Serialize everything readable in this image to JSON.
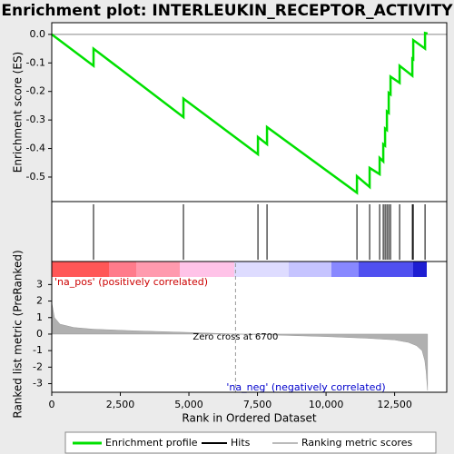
{
  "title": "Enrichment plot: INTERLEUKIN_RECEPTOR_ACTIVITY",
  "legend": [
    "Enrichment profile",
    "Hits",
    "Ranking metric scores"
  ],
  "chart_data": [
    {
      "type": "line",
      "ylabel": "Enrichment score (ES)",
      "color": "#00e000",
      "xlim": [
        0,
        14400
      ],
      "ylim": [
        -0.586,
        0.041
      ],
      "yticks": [
        {
          "value": 0,
          "label": "0.0"
        },
        -0.1,
        -0.2,
        -0.3,
        -0.4,
        -0.5
      ],
      "x": [
        0,
        1523,
        1523,
        4801,
        4801,
        7517,
        7517,
        7848,
        7848,
        11126,
        11126,
        11589,
        11589,
        11954,
        11954,
        12086,
        12086,
        12152,
        12152,
        12219,
        12219,
        12285,
        12285,
        12351,
        12351,
        12682,
        12682,
        13146,
        13146,
        13179,
        13179,
        13609,
        13609,
        13700
      ],
      "values": [
        0,
        -0.11,
        -0.05,
        -0.29,
        -0.225,
        -0.42,
        -0.36,
        -0.385,
        -0.325,
        -0.555,
        -0.497,
        -0.535,
        -0.468,
        -0.49,
        -0.433,
        -0.445,
        -0.385,
        -0.39,
        -0.33,
        -0.335,
        -0.27,
        -0.275,
        -0.205,
        -0.21,
        -0.148,
        -0.17,
        -0.11,
        -0.145,
        -0.085,
        -0.087,
        -0.02,
        -0.05,
        0.005,
        0.003
      ],
      "hits": [
        1523,
        4801,
        7517,
        7848,
        11126,
        11589,
        11954,
        12086,
        12152,
        12219,
        12285,
        12351,
        12682,
        13146,
        13179,
        13609
      ]
    },
    {
      "type": "area",
      "ylabel": "Ranked list metric (PreRanked)",
      "xlabel": "Rank in Ordered Dataset",
      "color": "#b0b0b0",
      "xlim": [
        0,
        14400
      ],
      "ylim": [
        -3.52,
        3.46
      ],
      "xticks": [
        0,
        {
          "value": 2500,
          "label": "2,500"
        },
        {
          "value": 5000,
          "label": "5,000"
        },
        {
          "value": 7500,
          "label": "7,500"
        },
        {
          "value": 10000,
          "label": "10,000"
        },
        {
          "value": 12500,
          "label": "12,500"
        }
      ],
      "yticks": [
        3,
        2,
        1,
        0,
        -1,
        -2,
        -3
      ],
      "x": [
        0,
        100,
        300,
        800,
        1500,
        3000,
        5000,
        6700,
        8000,
        10000,
        11500,
        12500,
        13000,
        13300,
        13500,
        13600,
        13650,
        13700
      ],
      "values": [
        1.9,
        1.0,
        0.6,
        0.4,
        0.3,
        0.2,
        0.1,
        0,
        -0.05,
        -0.15,
        -0.25,
        -0.35,
        -0.5,
        -0.7,
        -1.0,
        -1.6,
        -2.3,
        -3.4
      ],
      "zero_cross": 6700,
      "annotations": [
        "'na_pos' (positively correlated)",
        "Zero cross at 6700",
        "'na_neg' (negatively correlated)"
      ]
    }
  ]
}
